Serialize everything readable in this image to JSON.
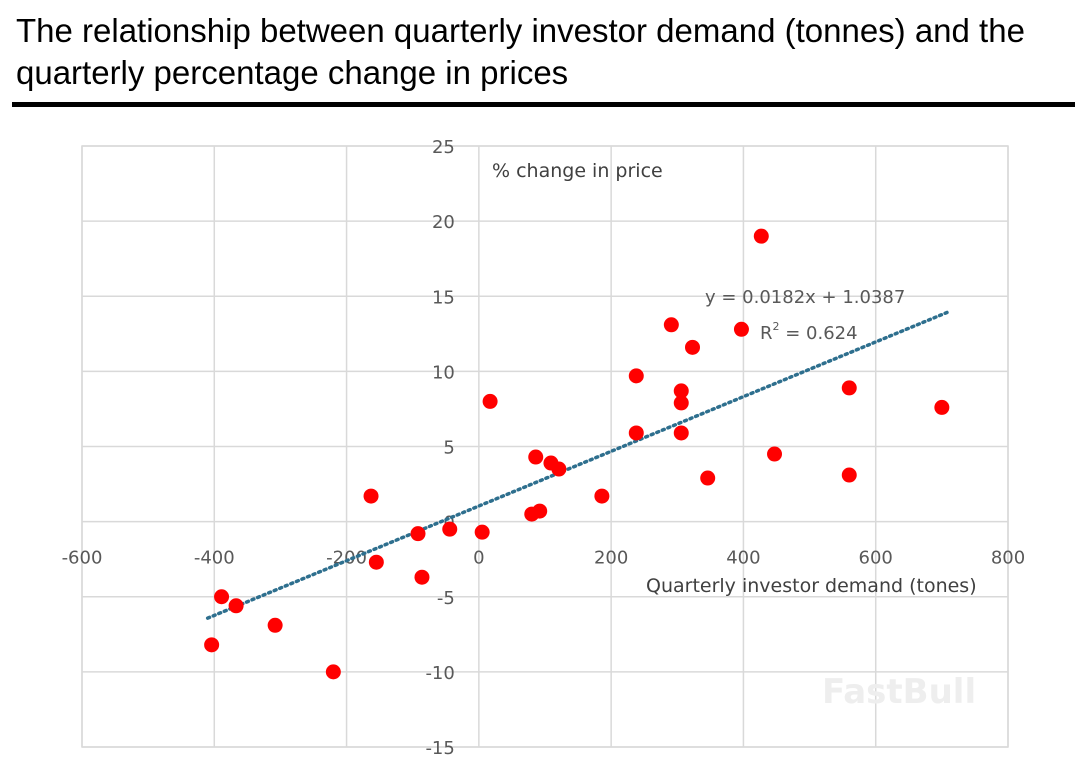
{
  "chart_data": {
    "type": "scatter",
    "title": "The relationship between quarterly investor demand (tonnes) and the quarterly percentage change in prices",
    "xlabel": "Quarterly investor demand (tones)",
    "ylabel": "% change in price",
    "xlim": [
      -600,
      800
    ],
    "ylim": [
      -15,
      25
    ],
    "xticks": [
      -600,
      -400,
      -200,
      0,
      200,
      400,
      600,
      800
    ],
    "yticks": [
      -15,
      -10,
      -5,
      0,
      5,
      10,
      15,
      20,
      25
    ],
    "grid": true,
    "marker_color": "#ff0000",
    "trend_color": "#2e6f8e",
    "points": [
      [
        -404,
        -8.2
      ],
      [
        -389,
        -5.0
      ],
      [
        -367,
        -5.6
      ],
      [
        -308,
        -6.9
      ],
      [
        -220,
        -10.0
      ],
      [
        -163,
        1.7
      ],
      [
        -155,
        -2.7
      ],
      [
        -92,
        -0.8
      ],
      [
        -86,
        -3.7
      ],
      [
        -44,
        -0.5
      ],
      [
        5,
        -0.7
      ],
      [
        17,
        8.0
      ],
      [
        80,
        0.5
      ],
      [
        86,
        4.3
      ],
      [
        92,
        0.7
      ],
      [
        109,
        3.9
      ],
      [
        121,
        3.5
      ],
      [
        186,
        1.7
      ],
      [
        238,
        9.7
      ],
      [
        238,
        5.9
      ],
      [
        291,
        13.1
      ],
      [
        306,
        8.7
      ],
      [
        306,
        7.9
      ],
      [
        306,
        5.9
      ],
      [
        323,
        11.6
      ],
      [
        346,
        2.9
      ],
      [
        397,
        12.8
      ],
      [
        427,
        19.0
      ],
      [
        447,
        4.5
      ],
      [
        560,
        8.9
      ],
      [
        560,
        3.1
      ],
      [
        700,
        7.6
      ]
    ],
    "trendline": {
      "slope": 0.0182,
      "intercept": 1.0387,
      "x_range": [
        -410,
        710
      ],
      "equation": "y = 0.0182x + 1.0387",
      "r2_label": "R",
      "r2_value": " = 0.624"
    },
    "watermark": "FastBull"
  }
}
